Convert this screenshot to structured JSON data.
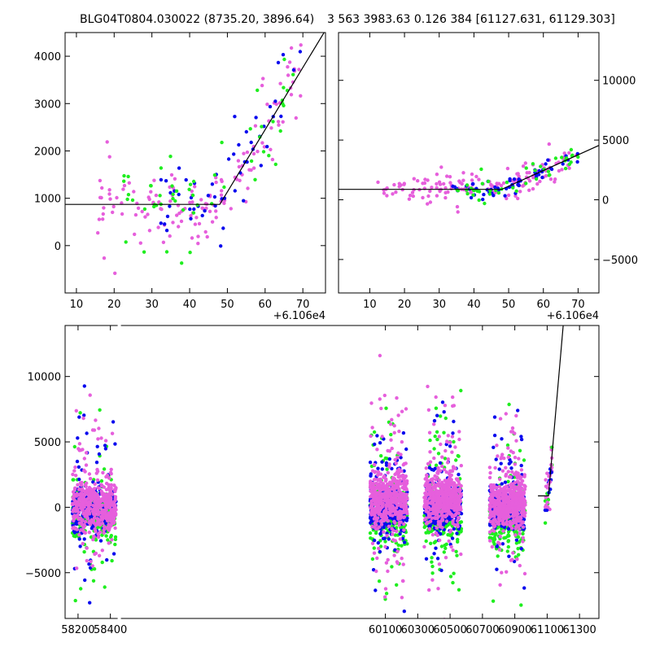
{
  "chart_data": [
    {
      "id": "top-left",
      "type": "scatter",
      "title": "BLG04T0804.030022 (8735.20, 3896.64)",
      "x_offset_label": "+6.106e4",
      "xlim": [
        7,
        76
      ],
      "ylim": [
        -1000,
        4500
      ],
      "xticks": [
        10,
        20,
        30,
        40,
        50,
        60,
        70
      ],
      "yticks": [
        0,
        1000,
        2000,
        3000,
        4000
      ],
      "yaxis_side": "left",
      "model_line": [
        [
          7,
          870
        ],
        [
          48,
          870
        ],
        [
          76,
          4550
        ]
      ],
      "series": [
        {
          "name": "magenta",
          "color": "#e65fdc",
          "count": 150,
          "seed": 11,
          "mode": "rise",
          "base": 870,
          "t0": 48,
          "slope": 131,
          "scatter": 420,
          "xmin": 15,
          "xmax": 70
        },
        {
          "name": "blue",
          "color": "#0a0aee",
          "count": 55,
          "seed": 22,
          "mode": "rise",
          "base": 870,
          "t0": 48,
          "slope": 131,
          "scatter": 380,
          "xmin": 32,
          "xmax": 70
        },
        {
          "name": "green",
          "color": "#1fee1f",
          "count": 55,
          "seed": 33,
          "mode": "rise",
          "base": 870,
          "t0": 48,
          "slope": 131,
          "scatter": 550,
          "xmin": 22,
          "xmax": 70
        }
      ]
    },
    {
      "id": "top-right",
      "type": "scatter",
      "title": "3 563 3983.63 0.126 384 [61127.631, 61129.303]",
      "x_offset_label": "+6.106e4",
      "xlim": [
        1,
        76
      ],
      "ylim": [
        -7800,
        14000
      ],
      "xticks": [
        10,
        20,
        30,
        40,
        50,
        60,
        70
      ],
      "yticks": [
        -5000,
        0,
        5000,
        10000
      ],
      "yaxis_side": "right",
      "model_line": [
        [
          1,
          870
        ],
        [
          48,
          870
        ],
        [
          76,
          4550
        ]
      ],
      "series": [
        {
          "name": "magenta",
          "color": "#e65fdc",
          "count": 150,
          "seed": 44,
          "mode": "rise",
          "base": 870,
          "t0": 48,
          "slope": 131,
          "scatter": 600,
          "xmin": 12,
          "xmax": 70
        },
        {
          "name": "blue",
          "color": "#0a0aee",
          "count": 55,
          "seed": 55,
          "mode": "rise",
          "base": 870,
          "t0": 48,
          "slope": 131,
          "scatter": 450,
          "xmin": 33,
          "xmax": 70
        },
        {
          "name": "green",
          "color": "#1fee1f",
          "count": 45,
          "seed": 66,
          "mode": "rise",
          "base": 870,
          "t0": 48,
          "slope": 131,
          "scatter": 600,
          "xmin": 35,
          "xmax": 70
        }
      ]
    },
    {
      "id": "bottom",
      "type": "scatter",
      "xlim": [
        58120,
        61420
      ],
      "ylim": [
        -8500,
        13900
      ],
      "xticks": [
        58200,
        58400,
        60100,
        60300,
        60500,
        60700,
        60900,
        61100,
        61300
      ],
      "yticks": [
        -5000,
        0,
        5000,
        10000
      ],
      "yaxis_side": "left",
      "axis_break_x": 58455,
      "model_line": [
        [
          61043,
          870
        ],
        [
          61108,
          870
        ],
        [
          61199,
          13900
        ]
      ],
      "seasons": [
        {
          "xmin": 58165,
          "xmax": 58435,
          "n": 500,
          "seed": 101,
          "offset_m": 0,
          "offset_b": -200,
          "offset_g": -700
        },
        {
          "xmin": 60005,
          "xmax": 60235,
          "n": 520,
          "seed": 202,
          "offset_m": 600,
          "offset_b": -200,
          "offset_g": -700
        },
        {
          "xmin": 60340,
          "xmax": 60570,
          "n": 520,
          "seed": 303,
          "offset_m": 600,
          "offset_b": -200,
          "offset_g": -700
        },
        {
          "xmin": 60745,
          "xmax": 60965,
          "n": 520,
          "seed": 404,
          "offset_m": 300,
          "offset_b": -200,
          "offset_g": -900
        }
      ],
      "series_colors": {
        "magenta": "#e65fdc",
        "blue": "#0a0aee",
        "green": "#1fee1f"
      },
      "event": {
        "xmin": 61085,
        "xmax": 61130,
        "n": 45,
        "seed": 505,
        "base": 870,
        "t0": 61108,
        "slope": 131
      }
    }
  ]
}
